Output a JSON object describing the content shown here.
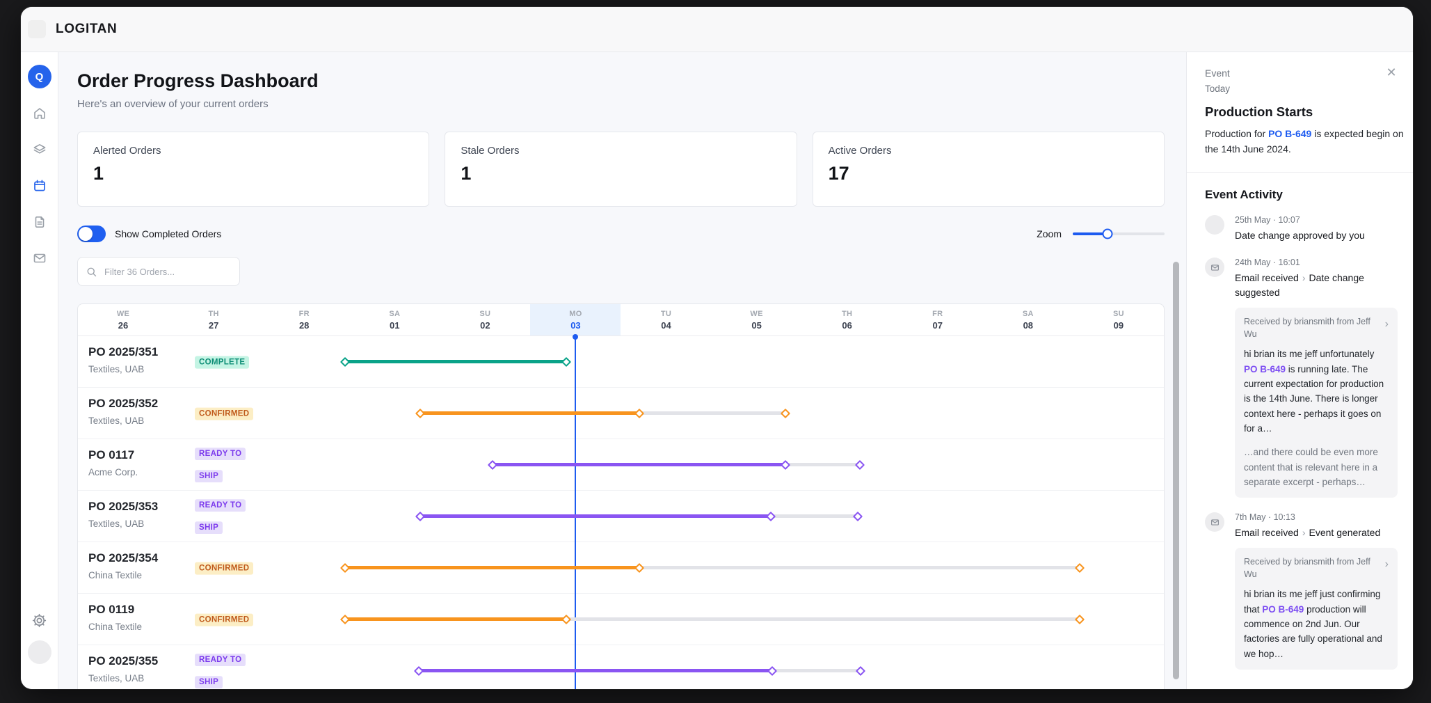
{
  "window": {
    "brand": "LOGITAN",
    "avatar_initial": "Q"
  },
  "sidebar": {
    "items": [
      {
        "name": "home",
        "active": false
      },
      {
        "name": "layers",
        "active": false
      },
      {
        "name": "calendar",
        "active": true
      },
      {
        "name": "document",
        "active": false
      },
      {
        "name": "mail",
        "active": false
      }
    ]
  },
  "header": {
    "title": "Order Progress Dashboard",
    "subtitle": "Here's an overview of your current orders"
  },
  "stats": [
    {
      "label": "Alerted Orders",
      "value": "1"
    },
    {
      "label": "Stale Orders",
      "value": "1"
    },
    {
      "label": "Active Orders",
      "value": "17"
    }
  ],
  "controls": {
    "toggle_label": "Show Completed Orders",
    "toggle_on": true,
    "zoom_label": "Zoom",
    "zoom_percent": 38,
    "filter_placeholder": "Filter 36 Orders..."
  },
  "colors": {
    "accent_blue": "#1d5bf0",
    "teal": "#0aa389",
    "orange": "#f8941e",
    "purple": "#8a55f2",
    "track_gray": "#e2e3e8"
  },
  "statuses": {
    "COMPLETE": {
      "label": "COMPLETE",
      "bg": "#c4f4e4",
      "fg": "#0d8e76"
    },
    "CONFIRMED": {
      "label": "CONFIRMED",
      "bg": "#fceec5",
      "fg": "#c05a1b"
    },
    "READY_TO_SHIP": {
      "label": "READY TO SHIP",
      "bg": "#e6defb",
      "fg": "#7c3aed"
    }
  },
  "chart": {
    "days": [
      {
        "abbr": "WE",
        "num": "26"
      },
      {
        "abbr": "TH",
        "num": "27"
      },
      {
        "abbr": "FR",
        "num": "28"
      },
      {
        "abbr": "SA",
        "num": "01"
      },
      {
        "abbr": "SU",
        "num": "02"
      },
      {
        "abbr": "MO",
        "num": "03"
      },
      {
        "abbr": "TU",
        "num": "04"
      },
      {
        "abbr": "WE",
        "num": "05"
      },
      {
        "abbr": "TH",
        "num": "06"
      },
      {
        "abbr": "FR",
        "num": "07"
      },
      {
        "abbr": "SA",
        "num": "08"
      },
      {
        "abbr": "SU",
        "num": "09"
      }
    ],
    "today_index": 5,
    "rows": [
      {
        "po": "PO 2025/351",
        "company": "Textiles, UAB",
        "status": "COMPLETE",
        "color": "teal",
        "start": 2.45,
        "progress": 4.9,
        "end": null
      },
      {
        "po": "PO 2025/352",
        "company": "Textiles, UAB",
        "status": "CONFIRMED",
        "color": "orange",
        "start": 3.28,
        "progress": 5.7,
        "end": 7.32
      },
      {
        "po": "PO 0117",
        "company": "Acme Corp.",
        "status": "READY_TO_SHIP",
        "color": "purple",
        "start": 4.08,
        "progress": 7.32,
        "end": 8.14
      },
      {
        "po": "PO 2025/353",
        "company": "Textiles, UAB",
        "status": "READY_TO_SHIP",
        "color": "purple",
        "start": 3.28,
        "progress": 7.16,
        "end": 8.12
      },
      {
        "po": "PO 2025/354",
        "company": "China Textile",
        "status": "CONFIRMED",
        "color": "orange",
        "start": 2.45,
        "progress": 5.7,
        "end": 10.57
      },
      {
        "po": "PO 0119",
        "company": "China Textile",
        "status": "CONFIRMED",
        "color": "orange",
        "start": 2.45,
        "progress": 4.9,
        "end": 10.57
      },
      {
        "po": "PO 2025/355",
        "company": "Textiles, UAB",
        "status": "READY_TO_SHIP",
        "color": "purple",
        "start": 3.27,
        "progress": 7.17,
        "end": 8.15
      }
    ]
  },
  "event_panel": {
    "kicker": "Event",
    "date_label": "Today",
    "title": "Production Starts",
    "desc_pre": "Production for ",
    "desc_link": "PO B-649",
    "desc_post": " is expected begin on the 14th June 2024.",
    "activity_title": "Event Activity",
    "activity": [
      {
        "icon": "avatar",
        "meta": "25th May · 10:07",
        "action": "Date change approved by you",
        "result": null,
        "quote": null
      },
      {
        "icon": "mail",
        "meta": "24th May · 16:01",
        "action": "Email received",
        "result": "Date change suggested",
        "quote": {
          "source": "Received by briansmith from Jeff Wu",
          "body_pre": "hi brian its me jeff unfortunately ",
          "body_link": "PO B-649",
          "body_post": " is running late. The current expectation for production is the 14th June. There is longer context here - perhaps it goes on for a…",
          "more": "…and there could be even more content that is relevant here in a separate excerpt - perhaps…"
        }
      },
      {
        "icon": "mail",
        "meta": "7th May · 10:13",
        "action": "Email received",
        "result": "Event generated",
        "quote": {
          "source": "Received by briansmith from Jeff Wu",
          "body_pre": "hi brian its me jeff just confirming that ",
          "body_link": "PO B-649",
          "body_post": " production will commence on 2nd Jun. Our factories are fully operational and we hop…",
          "more": null
        }
      }
    ]
  }
}
